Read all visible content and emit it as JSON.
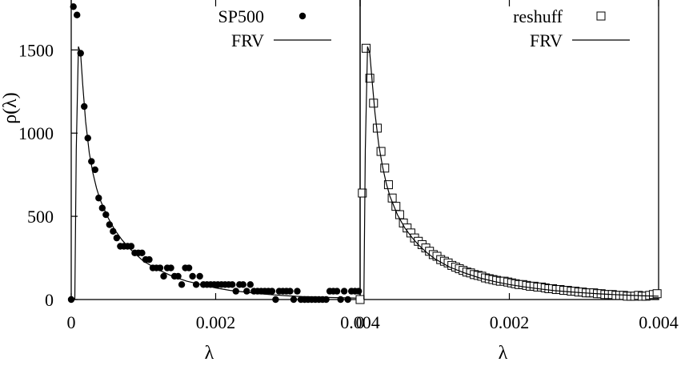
{
  "chart_data": [
    {
      "type": "scatter",
      "title": "",
      "xlabel": "λ",
      "ylabel": "ρ(λ)",
      "xlim": [
        0,
        0.004
      ],
      "ylim": [
        0,
        1800
      ],
      "xticks": [
        "0",
        "0.002",
        "0.004"
      ],
      "yticks": [
        "0",
        "500",
        "1000",
        "1500"
      ],
      "legend_position": "top-right",
      "series": [
        {
          "name": "SP500",
          "marker": "filled-circle",
          "x": [
            0,
            3e-05,
            8e-05,
            0.00013,
            0.00018,
            0.00023,
            0.00028,
            0.00033,
            0.00038,
            0.00043,
            0.00048,
            0.00053,
            0.00058,
            0.00063,
            0.00068,
            0.00073,
            0.00078,
            0.00083,
            0.00088,
            0.00093,
            0.00098,
            0.00103,
            0.00108,
            0.00113,
            0.00118,
            0.00123,
            0.00128,
            0.00133,
            0.00138,
            0.00143,
            0.00148,
            0.00153,
            0.00158,
            0.00163,
            0.00168,
            0.00173,
            0.00178,
            0.00183,
            0.00188,
            0.00193,
            0.00198,
            0.00203,
            0.00208,
            0.00213,
            0.00218,
            0.00223,
            0.00228,
            0.00233,
            0.00238,
            0.00243,
            0.00248,
            0.00253,
            0.00258,
            0.00263,
            0.00268,
            0.00273,
            0.00278,
            0.00283,
            0.00288,
            0.00293,
            0.00298,
            0.00303,
            0.00308,
            0.00313,
            0.00318,
            0.00323,
            0.00328,
            0.00333,
            0.00338,
            0.00343,
            0.00348,
            0.00353,
            0.00358,
            0.00363,
            0.00368,
            0.00373,
            0.00378,
            0.00383,
            0.00388,
            0.00393,
            0.00398
          ],
          "y": [
            0,
            1760,
            1710,
            1480,
            1160,
            970,
            830,
            780,
            610,
            550,
            510,
            450,
            410,
            370,
            320,
            320,
            320,
            320,
            280,
            280,
            280,
            240,
            240,
            190,
            190,
            190,
            140,
            190,
            190,
            140,
            140,
            90,
            190,
            190,
            140,
            90,
            140,
            90,
            90,
            90,
            90,
            90,
            90,
            90,
            90,
            90,
            50,
            90,
            90,
            50,
            90,
            50,
            50,
            50,
            50,
            50,
            50,
            0,
            50,
            50,
            50,
            50,
            0,
            50,
            0,
            0,
            0,
            0,
            0,
            0,
            0,
            0,
            50,
            50,
            50,
            0,
            50,
            0,
            50,
            50,
            50
          ]
        },
        {
          "name": "FRV",
          "marker": "line",
          "x": [
            5e-05,
            7e-05,
            0.0001,
            0.00013,
            0.00016,
            0.0002,
            0.00025,
            0.0003,
            0.00035,
            0.0004,
            0.0005,
            0.0006,
            0.0007,
            0.0008,
            0.0009,
            0.001,
            0.0012,
            0.0014,
            0.0016,
            0.0018,
            0.002,
            0.0022,
            0.0024,
            0.0026,
            0.0028,
            0.003,
            0.0032,
            0.0034,
            0.0036,
            0.0038,
            0.004
          ],
          "y": [
            0,
            900,
            1520,
            1480,
            1290,
            1070,
            880,
            760,
            670,
            600,
            500,
            420,
            360,
            310,
            270,
            230,
            180,
            140,
            110,
            90,
            70,
            55,
            45,
            35,
            28,
            22,
            18,
            15,
            12,
            10,
            8
          ]
        }
      ]
    },
    {
      "type": "scatter",
      "title": "",
      "xlabel": "λ",
      "ylabel": "",
      "xlim": [
        0,
        0.004
      ],
      "ylim": [
        0,
        1800
      ],
      "xticks": [
        "0",
        "0.002",
        "0.004"
      ],
      "yticks": [],
      "legend_position": "top-right",
      "series": [
        {
          "name": "reshuff",
          "marker": "open-square",
          "x": [
            0,
            3e-05,
            8e-05,
            0.00013,
            0.00018,
            0.00023,
            0.00028,
            0.00033,
            0.00038,
            0.00043,
            0.00048,
            0.00053,
            0.00058,
            0.00063,
            0.00068,
            0.00073,
            0.00078,
            0.00083,
            0.00088,
            0.00093,
            0.00098,
            0.00103,
            0.00108,
            0.00113,
            0.00118,
            0.00123,
            0.00128,
            0.00133,
            0.00138,
            0.00143,
            0.00148,
            0.00153,
            0.00158,
            0.00163,
            0.00168,
            0.00173,
            0.00178,
            0.00183,
            0.00188,
            0.00193,
            0.00198,
            0.00203,
            0.00208,
            0.00213,
            0.00218,
            0.00223,
            0.00228,
            0.00233,
            0.00238,
            0.00243,
            0.00248,
            0.00253,
            0.00258,
            0.00263,
            0.00268,
            0.00273,
            0.00278,
            0.00283,
            0.00288,
            0.00293,
            0.00298,
            0.00303,
            0.00308,
            0.00313,
            0.00318,
            0.00323,
            0.00328,
            0.00333,
            0.00338,
            0.00343,
            0.00348,
            0.00353,
            0.00358,
            0.00363,
            0.00368,
            0.00373,
            0.00378,
            0.00383,
            0.00388,
            0.00393,
            0.00398
          ],
          "y": [
            0,
            640,
            1510,
            1330,
            1180,
            1030,
            890,
            790,
            690,
            610,
            560,
            510,
            460,
            430,
            400,
            370,
            350,
            330,
            310,
            290,
            270,
            260,
            240,
            230,
            220,
            205,
            195,
            185,
            175,
            165,
            160,
            150,
            145,
            140,
            130,
            125,
            120,
            115,
            110,
            110,
            105,
            100,
            95,
            90,
            90,
            85,
            80,
            80,
            75,
            75,
            70,
            65,
            65,
            60,
            60,
            55,
            55,
            50,
            50,
            45,
            45,
            40,
            40,
            40,
            35,
            35,
            30,
            30,
            30,
            25,
            25,
            25,
            20,
            20,
            20,
            25,
            20,
            20,
            25,
            30,
            35
          ]
        },
        {
          "name": "FRV",
          "marker": "line",
          "x": [
            5e-05,
            7e-05,
            0.0001,
            0.00013,
            0.00016,
            0.0002,
            0.00025,
            0.0003,
            0.00035,
            0.0004,
            0.0005,
            0.0006,
            0.0007,
            0.0008,
            0.0009,
            0.001,
            0.0012,
            0.0014,
            0.0016,
            0.0018,
            0.002,
            0.0022,
            0.0024,
            0.0026,
            0.0028,
            0.003,
            0.0032,
            0.0034,
            0.0036,
            0.0038,
            0.004
          ],
          "y": [
            0,
            900,
            1520,
            1480,
            1320,
            1120,
            930,
            800,
            700,
            620,
            510,
            430,
            370,
            320,
            280,
            245,
            195,
            160,
            130,
            108,
            90,
            76,
            64,
            54,
            46,
            40,
            34,
            30,
            26,
            22,
            20
          ]
        }
      ]
    }
  ]
}
